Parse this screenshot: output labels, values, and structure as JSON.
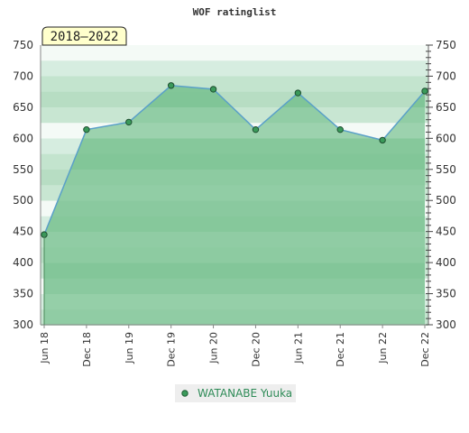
{
  "chart_data": {
    "type": "area",
    "title": "WOF ratinglist",
    "period_badge": "2018–2022",
    "xlabel": "",
    "ylabel": "",
    "categories": [
      "Jun 18",
      "Dec 18",
      "Jun 19",
      "Dec 19",
      "Jun 20",
      "Dec 20",
      "Jun 21",
      "Dec 21",
      "Jun 22",
      "Dec 22"
    ],
    "series": [
      {
        "name": "WATANABE Yuuka",
        "values": [
          445,
          614,
          626,
          685,
          679,
          614,
          673,
          614,
          597,
          676
        ]
      }
    ],
    "ylim": [
      300,
      750
    ],
    "y_ticks": [
      300,
      350,
      400,
      450,
      500,
      550,
      600,
      650,
      700,
      750
    ],
    "grid": true,
    "legend": "bottom",
    "colors": {
      "line": "#5aa0c8",
      "marker": "#3a9a5a",
      "fill": "#7fc496",
      "band_dark": "#b9e0c4",
      "band_light": "#f0f8f2",
      "badge_bg": "#ffffcc"
    }
  }
}
